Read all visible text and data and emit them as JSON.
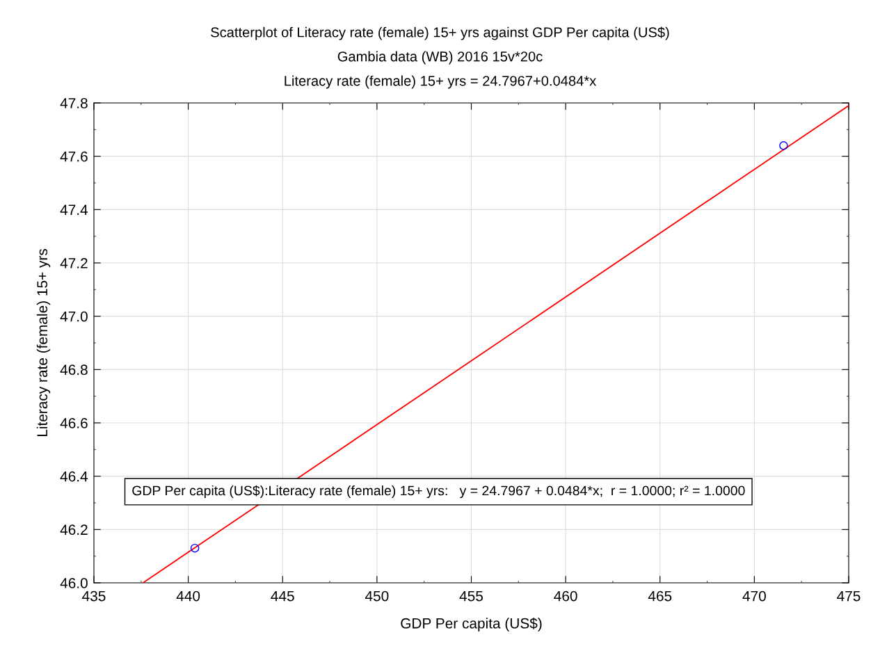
{
  "chart_data": {
    "type": "scatter",
    "title": "Scatterplot of Literacy rate (female) 15+ yrs against GDP Per capita (US$)",
    "subtitle": "Gambia data (WB) 2016 15v*20c",
    "xlabel": "GDP Per capita (US$)",
    "ylabel": "Literacy rate (female) 15+ yrs",
    "annotations": [
      "Literacy rate (female) 15+ yrs = 24.7967+0.0484*x",
      "GDP Per capita (US$):Literacy rate (female) 15+ yrs:   y = 24.7967 + 0.0484*x;  r = 1.0000; r² = 1.0000"
    ],
    "series": [
      {
        "color": "#0000ff",
        "marker": "circle",
        "x": [
          440.35,
          471.55
        ],
        "values": [
          46.13,
          47.64
        ]
      },
      {
        "type": "line",
        "color": "#ff0000",
        "marker": "none",
        "line_style": "solid",
        "x": [
          437.6,
          475
        ],
        "values": [
          46.0,
          47.79
        ]
      }
    ],
    "xlim": [
      435,
      475
    ],
    "xticks": [
      435,
      440,
      445,
      450,
      455,
      460,
      465,
      470,
      475
    ],
    "ylim": [
      46.0,
      47.8
    ],
    "yticks": [
      {
        "value": 46.0,
        "label": "46.0"
      },
      46.2,
      46.4,
      46.6,
      46.8,
      {
        "value": 47.0,
        "label": "47.0"
      },
      47.2,
      47.4,
      47.6,
      47.8
    ],
    "grid": true,
    "legend": false
  }
}
